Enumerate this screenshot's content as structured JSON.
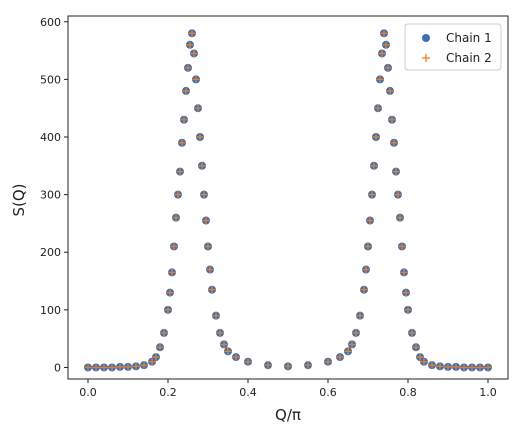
{
  "chart_data": {
    "type": "scatter",
    "xlabel": "Q/π",
    "ylabel": "S(Q)",
    "xlim": [
      -0.05,
      1.05
    ],
    "ylim": [
      -20,
      610
    ],
    "xticks": [
      "0.0",
      "0.2",
      "0.4",
      "0.6",
      "0.8",
      "1.0"
    ],
    "yticks": [
      "0",
      "100",
      "200",
      "300",
      "400",
      "500",
      "600"
    ],
    "grid": false,
    "legend_position": "top-right",
    "series": [
      {
        "name": "Chain 1",
        "marker": "circle",
        "color": "#3b6fb6",
        "x": [
          0.0,
          0.02,
          0.04,
          0.06,
          0.08,
          0.1,
          0.12,
          0.14,
          0.16,
          0.17,
          0.18,
          0.19,
          0.2,
          0.205,
          0.21,
          0.215,
          0.22,
          0.225,
          0.23,
          0.235,
          0.24,
          0.245,
          0.25,
          0.255,
          0.26,
          0.265,
          0.27,
          0.275,
          0.28,
          0.285,
          0.29,
          0.295,
          0.3,
          0.305,
          0.31,
          0.32,
          0.33,
          0.34,
          0.35,
          0.37,
          0.4,
          0.45,
          0.5,
          0.55,
          0.6,
          0.63,
          0.65,
          0.66,
          0.67,
          0.68,
          0.69,
          0.695,
          0.7,
          0.705,
          0.71,
          0.715,
          0.72,
          0.725,
          0.73,
          0.735,
          0.74,
          0.745,
          0.75,
          0.755,
          0.76,
          0.765,
          0.77,
          0.775,
          0.78,
          0.785,
          0.79,
          0.795,
          0.8,
          0.81,
          0.82,
          0.83,
          0.84,
          0.86,
          0.88,
          0.9,
          0.92,
          0.94,
          0.96,
          0.98,
          1.0
        ],
        "y": [
          0,
          0,
          0,
          0,
          1,
          1,
          2,
          4,
          10,
          18,
          35,
          60,
          100,
          130,
          165,
          210,
          260,
          300,
          340,
          390,
          430,
          480,
          520,
          560,
          580,
          545,
          500,
          450,
          400,
          350,
          300,
          255,
          210,
          170,
          135,
          90,
          60,
          40,
          28,
          18,
          10,
          4,
          2,
          4,
          10,
          18,
          28,
          40,
          60,
          90,
          135,
          170,
          210,
          255,
          300,
          350,
          400,
          450,
          500,
          545,
          580,
          560,
          520,
          480,
          430,
          390,
          340,
          300,
          260,
          210,
          165,
          130,
          100,
          60,
          35,
          18,
          10,
          4,
          2,
          1,
          1,
          0,
          0,
          0,
          0
        ]
      },
      {
        "name": "Chain 2",
        "marker": "plus",
        "color": "#f07f1e",
        "x": [
          0.0,
          0.02,
          0.04,
          0.06,
          0.08,
          0.1,
          0.12,
          0.14,
          0.16,
          0.17,
          0.18,
          0.19,
          0.2,
          0.205,
          0.21,
          0.215,
          0.22,
          0.225,
          0.23,
          0.235,
          0.24,
          0.245,
          0.25,
          0.255,
          0.26,
          0.265,
          0.27,
          0.275,
          0.28,
          0.285,
          0.29,
          0.295,
          0.3,
          0.305,
          0.31,
          0.32,
          0.33,
          0.34,
          0.35,
          0.37,
          0.4,
          0.45,
          0.5,
          0.55,
          0.6,
          0.63,
          0.65,
          0.66,
          0.67,
          0.68,
          0.69,
          0.695,
          0.7,
          0.705,
          0.71,
          0.715,
          0.72,
          0.725,
          0.73,
          0.735,
          0.74,
          0.745,
          0.75,
          0.755,
          0.76,
          0.765,
          0.77,
          0.775,
          0.78,
          0.785,
          0.79,
          0.795,
          0.8,
          0.81,
          0.82,
          0.83,
          0.84,
          0.86,
          0.88,
          0.9,
          0.92,
          0.94,
          0.96,
          0.98,
          1.0
        ],
        "y": [
          0,
          0,
          0,
          0,
          1,
          1,
          2,
          4,
          10,
          18,
          35,
          60,
          100,
          130,
          165,
          210,
          260,
          300,
          340,
          390,
          430,
          480,
          520,
          560,
          580,
          545,
          500,
          450,
          400,
          350,
          300,
          255,
          210,
          170,
          135,
          90,
          60,
          40,
          28,
          18,
          10,
          4,
          2,
          4,
          10,
          18,
          28,
          40,
          60,
          90,
          135,
          170,
          210,
          255,
          300,
          350,
          400,
          450,
          500,
          545,
          580,
          560,
          520,
          480,
          430,
          390,
          340,
          300,
          260,
          210,
          165,
          130,
          100,
          60,
          35,
          18,
          10,
          4,
          2,
          1,
          1,
          0,
          0,
          0,
          0
        ]
      }
    ]
  }
}
